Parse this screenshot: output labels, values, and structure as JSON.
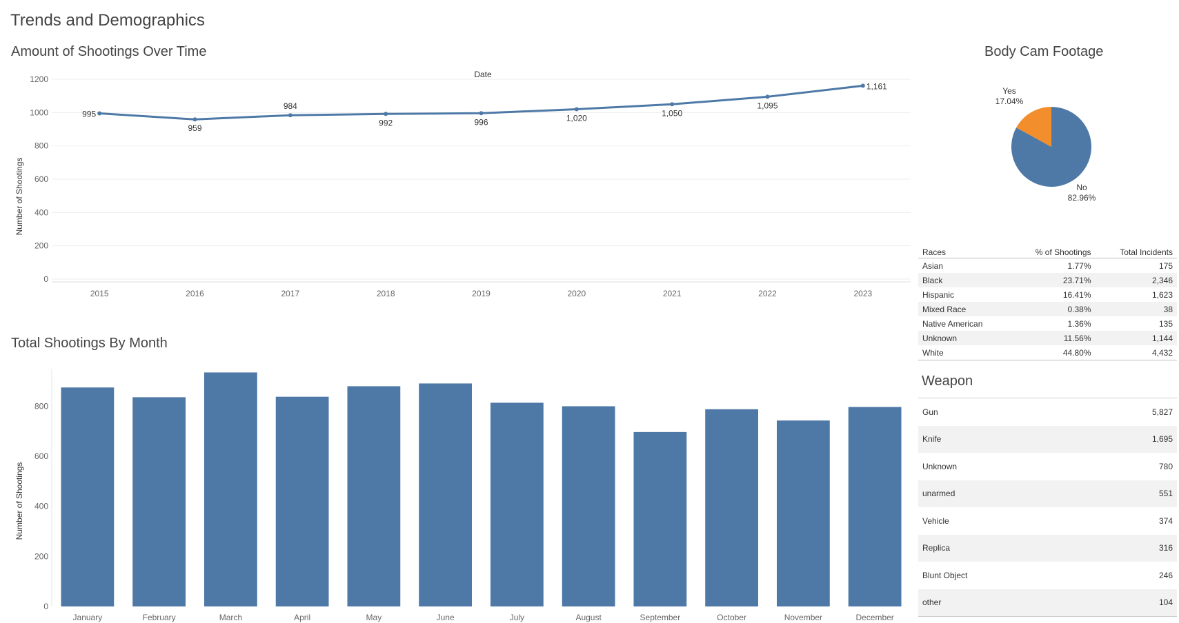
{
  "dashboard": {
    "title": "Trends and Demographics"
  },
  "line_section": {
    "title": "Amount of Shootings Over Time",
    "top_label": "Date",
    "ylabel": "Number of Shootings"
  },
  "bar_section": {
    "title": "Total Shootings By Month",
    "ylabel": "Number of Shootings"
  },
  "pie_section": {
    "title": "Body Cam Footage"
  },
  "races_table": {
    "headers": [
      "Races",
      "% of Shootings",
      "Total Incidents"
    ],
    "rows": [
      {
        "race": "Asian",
        "pct": "1.77%",
        "total": "175"
      },
      {
        "race": "Black",
        "pct": "23.71%",
        "total": "2,346"
      },
      {
        "race": "Hispanic",
        "pct": "16.41%",
        "total": "1,623"
      },
      {
        "race": "Mixed Race",
        "pct": "0.38%",
        "total": "38"
      },
      {
        "race": "Native American",
        "pct": "1.36%",
        "total": "135"
      },
      {
        "race": "Unknown",
        "pct": "11.56%",
        "total": "1,144"
      },
      {
        "race": "White",
        "pct": "44.80%",
        "total": "4,432"
      }
    ]
  },
  "weapon_section": {
    "title": "Weapon",
    "rows": [
      {
        "weapon": "Gun",
        "count": "5,827"
      },
      {
        "weapon": "Knife",
        "count": "1,695"
      },
      {
        "weapon": "Unknown",
        "count": "780"
      },
      {
        "weapon": "unarmed",
        "count": "551"
      },
      {
        "weapon": "Vehicle",
        "count": "374"
      },
      {
        "weapon": "Replica",
        "count": "316"
      },
      {
        "weapon": "Blunt Object",
        "count": "246"
      },
      {
        "weapon": "other",
        "count": "104"
      }
    ]
  },
  "chart_data": [
    {
      "type": "line",
      "title": "Amount of Shootings Over Time",
      "xlabel": "Date",
      "ylabel": "Number of Shootings",
      "x": [
        "2015",
        "2016",
        "2017",
        "2018",
        "2019",
        "2020",
        "2021",
        "2022",
        "2023"
      ],
      "values": [
        995,
        959,
        984,
        992,
        996,
        1020,
        1050,
        1095,
        1161
      ],
      "labels": [
        "995",
        "959",
        "984",
        "992",
        "996",
        "1,020",
        "1,050",
        "1,095",
        "1,161"
      ],
      "ylim": [
        0,
        1200
      ],
      "yticks": [
        0,
        200,
        400,
        600,
        800,
        1000,
        1200
      ],
      "color": "#4e79a7",
      "grid": true
    },
    {
      "type": "bar",
      "title": "Total Shootings By Month",
      "ylabel": "Number of Shootings",
      "categories": [
        "January",
        "February",
        "March",
        "April",
        "May",
        "June",
        "July",
        "August",
        "September",
        "October",
        "November",
        "December"
      ],
      "values": [
        875,
        836,
        935,
        838,
        880,
        891,
        814,
        800,
        697,
        788,
        743,
        797
      ],
      "ylim": [
        0,
        950
      ],
      "yticks": [
        0,
        200,
        400,
        600,
        800
      ],
      "color": "#4e79a7",
      "grid": false
    },
    {
      "type": "pie",
      "title": "Body Cam Footage",
      "slices": [
        {
          "label": "No",
          "value": 82.96,
          "pct_label": "82.96%",
          "color": "#4e79a7"
        },
        {
          "label": "Yes",
          "value": 17.04,
          "pct_label": "17.04%",
          "color": "#f28e2b"
        }
      ]
    }
  ]
}
